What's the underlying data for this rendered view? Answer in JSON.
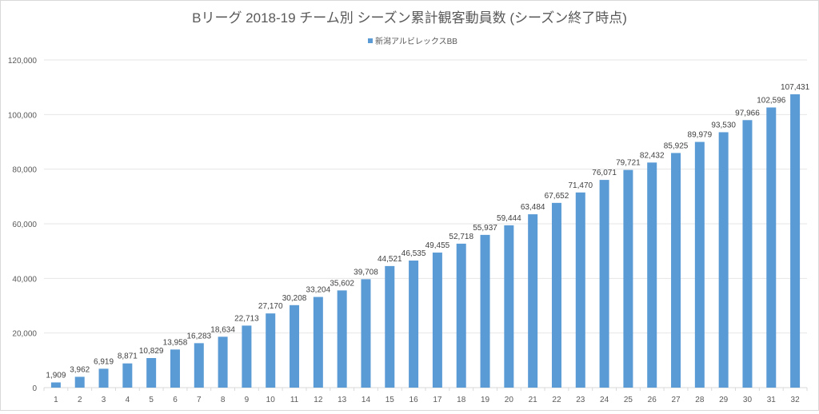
{
  "chart_data": {
    "type": "bar",
    "title": "Bリーグ 2018-19 チーム別 シーズン累計観客動員数 (シーズン終了時点)",
    "xlabel": "",
    "ylabel": "",
    "ylim": [
      0,
      120000
    ],
    "yticks": [
      0,
      20000,
      40000,
      60000,
      80000,
      100000,
      120000
    ],
    "ytick_labels": [
      "0",
      "20,000",
      "40,000",
      "60,000",
      "80,000",
      "100,000",
      "120,000"
    ],
    "grid": true,
    "legend_position": "top-center",
    "categories": [
      "1",
      "2",
      "3",
      "4",
      "5",
      "6",
      "7",
      "8",
      "9",
      "10",
      "11",
      "12",
      "13",
      "14",
      "15",
      "16",
      "17",
      "18",
      "19",
      "20",
      "21",
      "22",
      "23",
      "24",
      "25",
      "26",
      "27",
      "28",
      "29",
      "30",
      "31",
      "32"
    ],
    "series": [
      {
        "name": "新潟アルビレックスBB",
        "color": "#5b9bd5",
        "values": [
          1909,
          3962,
          6919,
          8871,
          10829,
          13958,
          16283,
          18634,
          22713,
          27170,
          30208,
          33204,
          35602,
          39708,
          44521,
          46535,
          49455,
          52718,
          55937,
          59444,
          63484,
          67652,
          71470,
          76071,
          79721,
          82432,
          85925,
          89979,
          93530,
          97966,
          102596,
          107431
        ]
      }
    ]
  }
}
